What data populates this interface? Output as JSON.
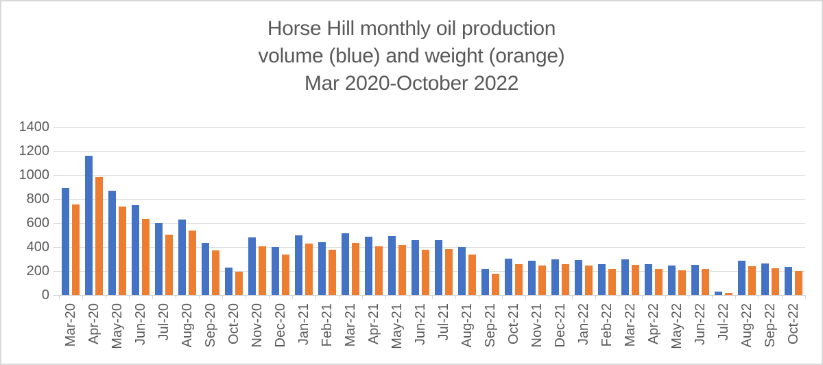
{
  "title": {
    "lines": [
      "Horse Hill monthly oil production",
      "volume (blue) and weight (orange)",
      "Mar 2020-October 2022"
    ]
  },
  "colors": {
    "volume_blue": "#4472C4",
    "weight_orange": "#ED7D31",
    "gridline": "#D9D9D9",
    "axis_text": "#595959",
    "frame_border": "#D8D8D8"
  },
  "chart_data": {
    "type": "bar",
    "title": "Horse Hill monthly oil production volume (blue) and weight (orange) Mar 2020-October 2022",
    "xlabel": "",
    "ylabel": "",
    "ylim": [
      0,
      1400
    ],
    "y_ticks": [
      1400,
      1200,
      1000,
      800,
      600,
      400,
      200,
      0
    ],
    "grid": true,
    "legend_position": "none",
    "categories": [
      "Mar-20",
      "Apr-20",
      "May-20",
      "Jun-20",
      "Jul-20",
      "Aug-20",
      "Sep-20",
      "Oct-20",
      "Nov-20",
      "Dec-20",
      "Jan-21",
      "Feb-21",
      "Mar-21",
      "Apr-21",
      "May-21",
      "Jun-21",
      "Jul-21",
      "Aug-21",
      "Sep-21",
      "Oct-21",
      "Nov-21",
      "Dec-21",
      "Jan-22",
      "Feb-22",
      "Mar-22",
      "Apr-22",
      "May-22",
      "Jun-22",
      "Jul-22",
      "Aug-22",
      "Sep-22",
      "Oct-22"
    ],
    "series": [
      {
        "name": "volume",
        "color": "#4472C4",
        "values": [
          890,
          1160,
          870,
          750,
          600,
          630,
          435,
          230,
          480,
          400,
          500,
          440,
          515,
          485,
          490,
          455,
          455,
          400,
          215,
          305,
          285,
          300,
          290,
          260,
          295,
          255,
          245,
          250,
          30,
          285,
          265,
          235
        ]
      },
      {
        "name": "weight",
        "color": "#ED7D31",
        "values": [
          755,
          985,
          735,
          635,
          505,
          535,
          370,
          195,
          405,
          335,
          430,
          375,
          435,
          405,
          415,
          380,
          385,
          340,
          175,
          260,
          245,
          255,
          245,
          220,
          250,
          215,
          205,
          215,
          20,
          240,
          225,
          200
        ]
      }
    ]
  }
}
